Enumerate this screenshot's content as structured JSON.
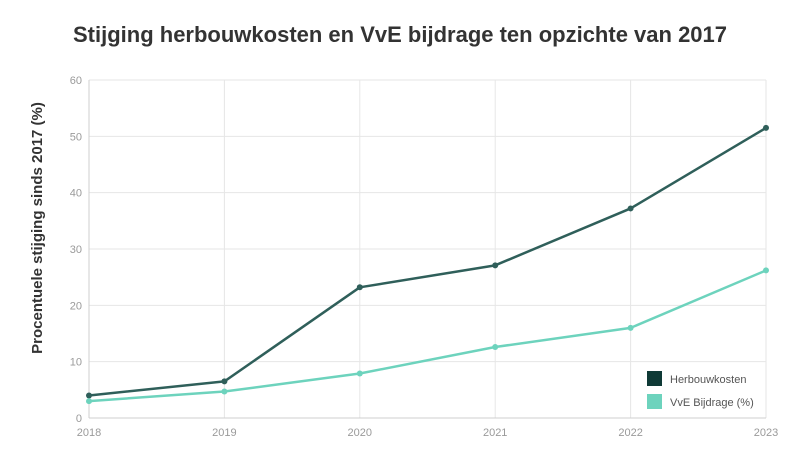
{
  "chart_data": {
    "type": "line",
    "title": "Stijging herbouwkosten en VvE bijdrage ten opzichte van 2017",
    "xlabel": "",
    "ylabel": "Procentuele stijging sinds 2017 (%)",
    "x": [
      "2018",
      "2019",
      "2020",
      "2021",
      "2022",
      "2023"
    ],
    "ylim": [
      0,
      60
    ],
    "yticks": [
      0,
      10,
      20,
      30,
      40,
      50,
      60
    ],
    "grid": true,
    "legend_position": "bottom-right",
    "series": [
      {
        "name": "Herbouwkosten",
        "color": "#2f5f5a",
        "legend_color": "#0f3a36",
        "values": [
          4.0,
          6.5,
          23.2,
          27.1,
          37.2,
          51.5
        ]
      },
      {
        "name": "VvE Bijdrage (%)",
        "color": "#6dd3bd",
        "legend_color": "#6dd3bd",
        "values": [
          3.0,
          4.7,
          7.9,
          12.6,
          16.0,
          26.2
        ]
      }
    ]
  }
}
